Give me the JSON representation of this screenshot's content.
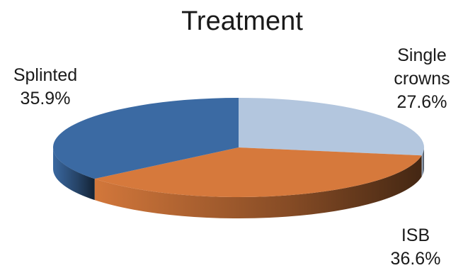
{
  "chart_data": {
    "type": "pie",
    "title": "Treatment",
    "slices": [
      {
        "name": "Single crowns",
        "label_lines": [
          "Single",
          "crowns"
        ],
        "value": 27.6,
        "value_label": "27.6%",
        "color": "#b3c6de"
      },
      {
        "name": "ISB",
        "label_lines": [
          "ISB"
        ],
        "value": 36.6,
        "value_label": "36.6%",
        "color": "#d6793c"
      },
      {
        "name": "Splinted",
        "label_lines": [
          "Splinted"
        ],
        "value": 35.9,
        "value_label": "35.9%",
        "color": "#3b6aa3"
      }
    ],
    "style": "3d",
    "start": "12 o'clock",
    "direction": "clockwise"
  }
}
